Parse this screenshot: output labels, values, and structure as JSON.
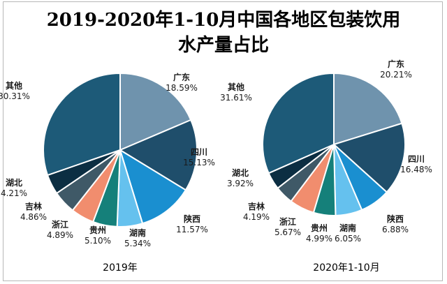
{
  "title_line1": "2019-2020年1-10月中国各地区包装饮用",
  "title_line2": "水产量占比",
  "chart_data": [
    {
      "type": "pie",
      "caption": "2019年",
      "start": "top, clockwise",
      "slices": [
        {
          "name": "广东",
          "value": 18.59,
          "label": "18.59%",
          "color": "#6f93ad"
        },
        {
          "name": "四川",
          "value": 15.13,
          "label": "15.13%",
          "color": "#1f4e6b"
        },
        {
          "name": "陕西",
          "value": 11.57,
          "label": "11.57%",
          "color": "#1a8fd0"
        },
        {
          "name": "湖南",
          "value": 5.34,
          "label": "5.34%",
          "color": "#65c1ee"
        },
        {
          "name": "贵州",
          "value": 5.1,
          "label": "5.10%",
          "color": "#15807a"
        },
        {
          "name": "浙江",
          "value": 4.89,
          "label": "4.89%",
          "color": "#f18d6e"
        },
        {
          "name": "吉林",
          "value": 4.86,
          "label": "4.86%",
          "color": "#3f5967"
        },
        {
          "name": "湖北",
          "value": 4.21,
          "label": "4.21%",
          "color": "#0c2e42"
        },
        {
          "name": "其他",
          "value": 30.31,
          "label": "30.31%",
          "color": "#1d5a78"
        }
      ]
    },
    {
      "type": "pie",
      "caption": "2020年1-10月",
      "start": "top, clockwise",
      "slices": [
        {
          "name": "广东",
          "value": 20.21,
          "label": "20.21%",
          "color": "#6f93ad"
        },
        {
          "name": "四川",
          "value": 16.48,
          "label": "16.48%",
          "color": "#1f4e6b"
        },
        {
          "name": "陕西",
          "value": 6.88,
          "label": "6.88%",
          "color": "#1a8fd0"
        },
        {
          "name": "湖南",
          "value": 6.05,
          "label": "6.05%",
          "color": "#65c1ee"
        },
        {
          "name": "贵州",
          "value": 4.99,
          "label": "4.99%",
          "color": "#15807a"
        },
        {
          "name": "浙江",
          "value": 5.67,
          "label": "5.67%",
          "color": "#f18d6e"
        },
        {
          "name": "吉林",
          "value": 4.19,
          "label": "4.19%",
          "color": "#3f5967"
        },
        {
          "name": "湖北",
          "value": 3.92,
          "label": "3.92%",
          "color": "#0c2e42"
        },
        {
          "name": "其他",
          "value": 31.61,
          "label": "31.61%",
          "color": "#1d5a78"
        }
      ]
    }
  ]
}
